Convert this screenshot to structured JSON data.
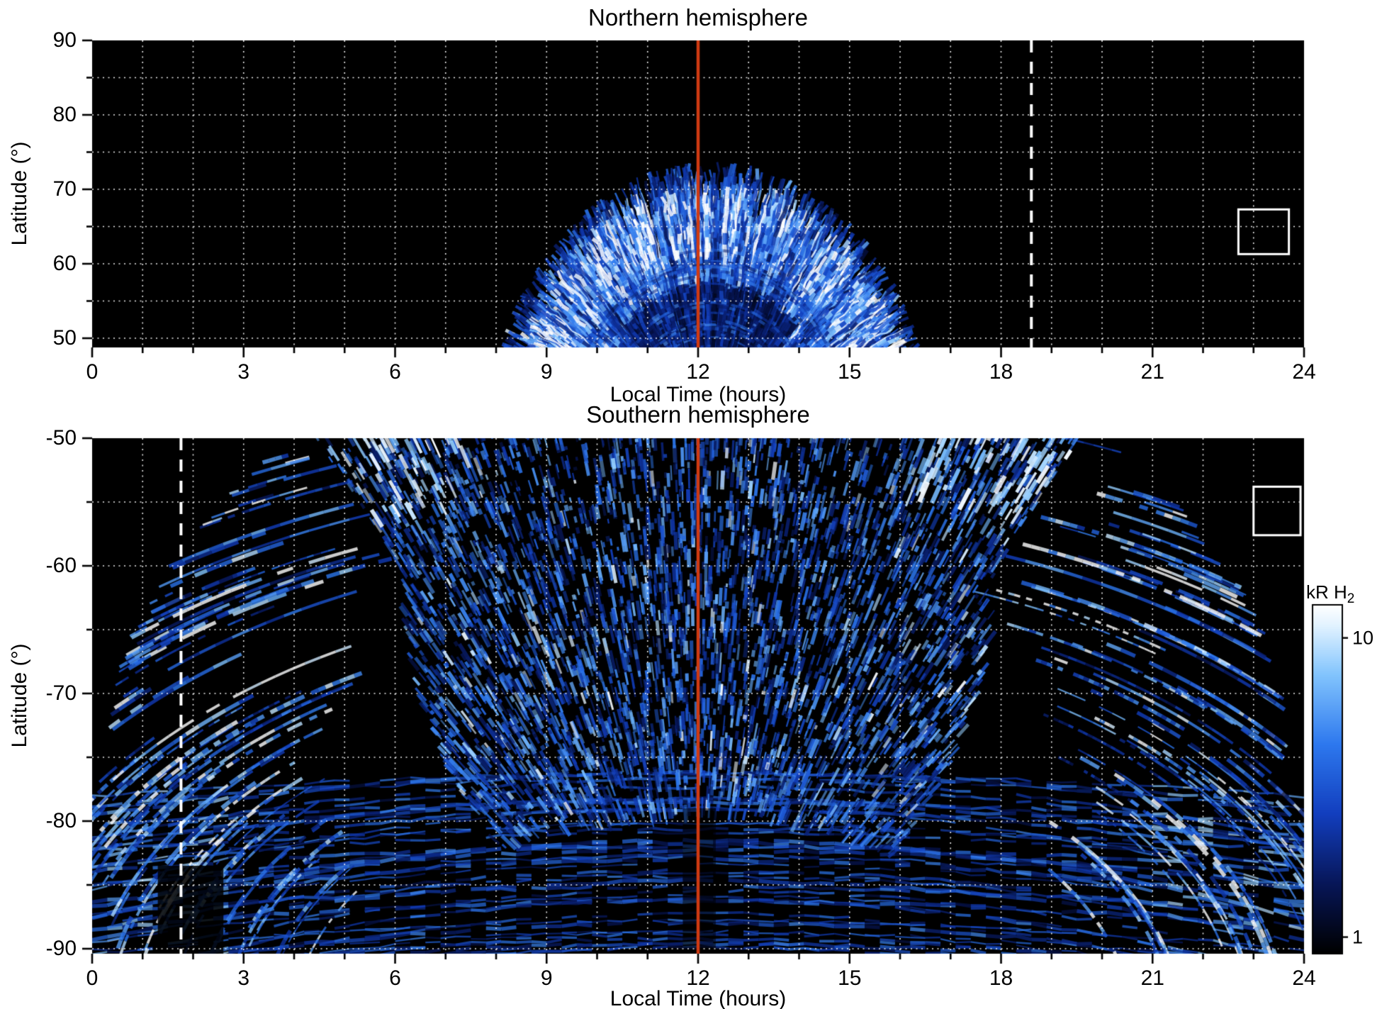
{
  "page": {
    "background": "#ffffff",
    "description": "Two-panel auroral H2 emission map, local time vs latitude, for northern and southern hemispheres"
  },
  "chart_data": [
    {
      "type": "heatmap",
      "hemisphere": "north",
      "title": "Northern hemisphere",
      "xlabel": "Local Time (hours)",
      "ylabel": "Latitude (°)",
      "x_range": [
        0,
        24
      ],
      "y_range": [
        50,
        90
      ],
      "x_ticks": [
        0,
        3,
        6,
        9,
        12,
        15,
        18,
        21,
        24
      ],
      "y_ticks": [
        90,
        80,
        70,
        60,
        50
      ],
      "y_minor_ticks": [
        85,
        75,
        65,
        55
      ],
      "grid": {
        "style": "dotted",
        "color": "#ffffff",
        "x_step_hours": 1,
        "y_lines": [
          50,
          55,
          60,
          65,
          70,
          75,
          80,
          85
        ]
      },
      "background": "#000000",
      "annotations": {
        "noon_line": {
          "hour": 12,
          "color": "#d03a12",
          "style": "solid"
        },
        "dashed_line": {
          "hour": 18.6,
          "color": "#ffffff",
          "style": "dashed"
        },
        "fov_box": {
          "hour_min": 22.7,
          "hour_max": 23.7,
          "lat_min": 61.3,
          "lat_max": 67.3,
          "color": "#ffffff"
        }
      },
      "emission_summary": {
        "description": "Filamentary H2 auroral emission dome centred near 12.25 h local time, base spanning ~7.9-16.6 h at 50° latitude and apex near 73°; bright ring near 63-70°, darker mottled core below ~60° around noon; remainder of panel black (no emission).",
        "center_hour": 12.25,
        "apex_lat": 73,
        "base_span_hours": [
          7.9,
          16.6
        ],
        "bright_ring_lat": [
          63,
          70
        ],
        "intensity_kR_range": [
          1,
          13
        ]
      },
      "render": {
        "seed": 11,
        "streaks": 980,
        "base_arcs": 26,
        "center_hour": 12.25,
        "center_lat": 36,
        "semi_axis_hours": 4.35,
        "semi_axis_deg": 37.1
      }
    },
    {
      "type": "heatmap",
      "hemisphere": "south",
      "title": "Southern hemisphere",
      "xlabel": "Local Time (hours)",
      "ylabel": "Latitude (°)",
      "x_range": [
        0,
        24
      ],
      "y_range": [
        -90,
        -50
      ],
      "x_ticks": [
        0,
        3,
        6,
        9,
        12,
        15,
        18,
        21,
        24
      ],
      "y_ticks": [
        -50,
        -60,
        -70,
        -80,
        -90
      ],
      "y_minor_ticks": [
        -55,
        -65,
        -75,
        -85
      ],
      "grid": {
        "style": "dotted",
        "color": "#ffffff",
        "x_step_hours": 1,
        "y_lines": [
          -55,
          -60,
          -65,
          -70,
          -75,
          -80,
          -85,
          -90
        ]
      },
      "background": "#000000",
      "annotations": {
        "noon_line": {
          "hour": 12,
          "color": "#d03a12",
          "style": "solid"
        },
        "dashed_line": {
          "hour": 1.76,
          "color": "#ffffff",
          "style": "dashed"
        },
        "fov_box": {
          "hour_min": 23.0,
          "hour_max": 23.93,
          "lat_min": -57.6,
          "lat_max": -53.8,
          "color": "#ffffff"
        }
      },
      "emission_summary": {
        "description": "Widespread speckled H2 emission fanning out from the pole: bright curved dawn (0-6 h) and dusk (18-24 h) flank arc systems between -50° and -88°, nested near-horizontal arcs poleward of ~-78° at all local times, dense mottled emission between ~5-19 h up to -50°, and a darker gap near 12 h poleward of -80°.",
        "flank_edge_hours": [
          5.2,
          18.8
        ],
        "arc_band_lat": [
          -78,
          -90
        ],
        "interior_span_hours": [
          4.7,
          19.4
        ],
        "intensity_kR_range": [
          1,
          13
        ]
      },
      "render": {
        "seed": 29,
        "speckles": 5200,
        "flank_arcs": 80,
        "bottom_arcs": 48,
        "center_hour": 12.0,
        "center_lat": -96,
        "semi_axis_hours": 19.9,
        "semi_axis_deg": 48.3
      }
    }
  ],
  "colorbar": {
    "title": "kR H",
    "title_sub": "2",
    "scale": "log",
    "ticks": [
      10,
      1
    ],
    "vmin": 0.88,
    "vmax": 12.9,
    "colors": [
      "#000000",
      "#12309a",
      "#2f6fe0",
      "#8ec4fc",
      "#ffffff"
    ]
  }
}
